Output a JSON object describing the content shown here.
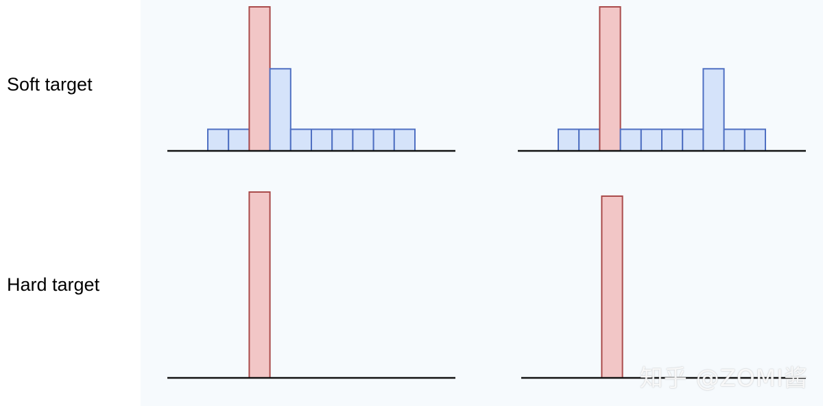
{
  "labels": {
    "soft": "Soft target",
    "hard": "Hard target"
  },
  "watermark": "知乎 @ZOMI酱",
  "colors": {
    "target_fill": "#f2c6c6",
    "target_stroke": "#a94a4a",
    "other_fill": "#d5e3fa",
    "other_stroke": "#4e6fc2",
    "axis": "#111111",
    "panel_bg": "#f6fafd"
  },
  "chart_data": [
    {
      "type": "bar",
      "row": "Soft target",
      "values": [
        0.15,
        0.15,
        1.0,
        0.57,
        0.15,
        0.15,
        0.15,
        0.15,
        0.15,
        0.15
      ],
      "highlight_index": 2
    },
    {
      "type": "bar",
      "row": "Soft target",
      "values": [
        0.15,
        0.15,
        1.0,
        0.15,
        0.15,
        0.15,
        0.15,
        0.57,
        0.15,
        0.15
      ],
      "highlight_index": 2
    },
    {
      "type": "bar",
      "row": "Hard target",
      "values": [
        0,
        0,
        1.0,
        0,
        0,
        0,
        0,
        0,
        0,
        0
      ],
      "highlight_index": 2
    },
    {
      "type": "bar",
      "row": "Hard target",
      "values": [
        0,
        0,
        1.0,
        0,
        0,
        0,
        0,
        0,
        0,
        0
      ],
      "highlight_index": 2
    }
  ]
}
